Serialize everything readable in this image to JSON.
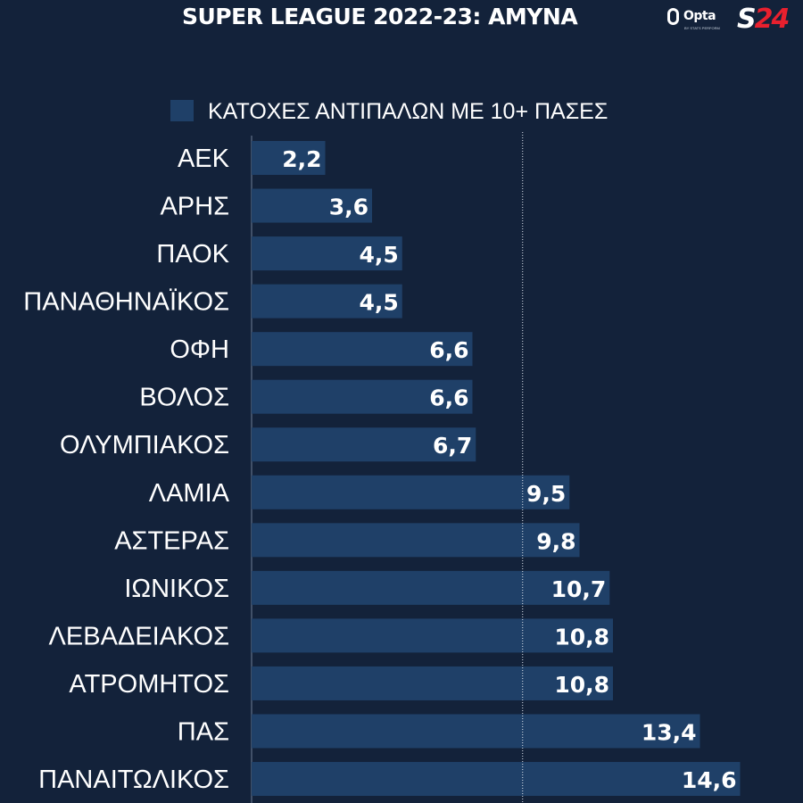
{
  "title": "SUPER LEAGUE 2022-23: ΑΜΥΝΑ",
  "logos": {
    "opta": "Opta",
    "opta_sub": "BY STATS PERFORM",
    "s24_s": "S",
    "s24_num": "24"
  },
  "legend": {
    "label": "ΚΑΤΟΧΕΣ ΑΝΤΙΠΑΛΩΝ ΜΕ 10+ ΠΑΣΕΣ",
    "color": "#1f4068"
  },
  "colors": {
    "background": "#13223a",
    "bar": "#1f4068",
    "text": "#ffffff"
  },
  "chart_data": {
    "type": "bar",
    "orientation": "horizontal",
    "categories": [
      "ΑΕΚ",
      "ΑΡΗΣ",
      "ΠΑΟΚ",
      "ΠΑΝΑΘΗΝΑΪΚΟΣ",
      "ΟΦΗ",
      "ΒΟΛΟΣ",
      "ΟΛΥΜΠΙΑΚΟΣ",
      "ΛΑΜΙΑ",
      "ΑΣΤΕΡΑΣ",
      "ΙΩΝΙΚΟΣ",
      "ΛΕΒΑΔΕΙΑΚΟΣ",
      "ΑΤΡΟΜΗΤΟΣ",
      "ΠΑΣ",
      "ΠΑΝΑΙΤΩΛΙΚΟΣ"
    ],
    "values": [
      2.2,
      3.6,
      4.5,
      4.5,
      6.6,
      6.6,
      6.7,
      9.5,
      9.8,
      10.7,
      10.8,
      10.8,
      13.4,
      14.6
    ],
    "value_labels": [
      "2,2",
      "3,6",
      "4,5",
      "4,5",
      "6,6",
      "6,6",
      "6,7",
      "9,5",
      "9,8",
      "10,7",
      "10,8",
      "10,8",
      "13,4",
      "14,6"
    ],
    "series_name": "ΚΑΤΟΧΕΣ ΑΝΤΙΠΑΛΩΝ ΜΕ 10+ ΠΑΣΕΣ",
    "reference_line": 8.1,
    "xlim": [
      0,
      16.5
    ],
    "legend_position": "top"
  }
}
